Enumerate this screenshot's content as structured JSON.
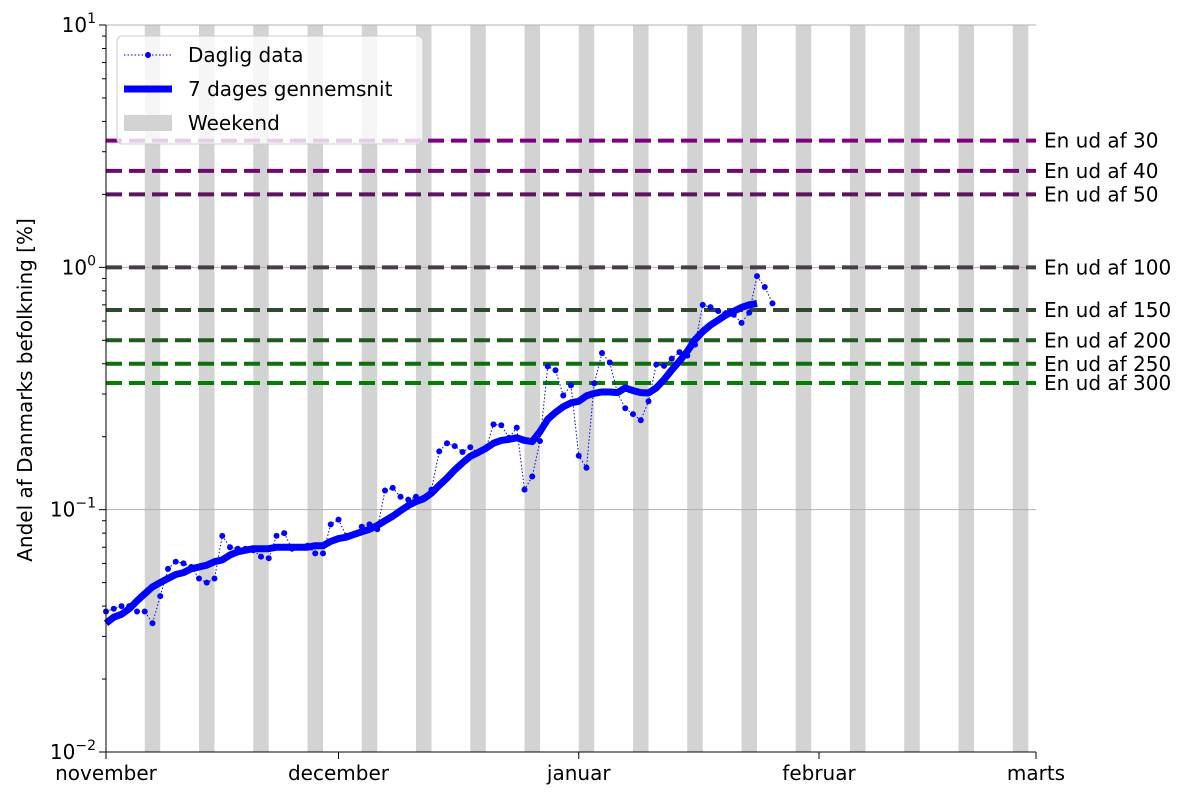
{
  "chart_data": {
    "type": "line",
    "yscale": "log",
    "ylim": [
      0.01,
      10
    ],
    "xlim": [
      "2021-11-01",
      "2022-03-01"
    ],
    "ylabel": "Andel af Danmarks befolkning [%]",
    "y_ticks": [
      {
        "value": 0.01,
        "base": "10",
        "exp": "−2"
      },
      {
        "value": 0.1,
        "base": "10",
        "exp": "−1"
      },
      {
        "value": 1,
        "base": "10",
        "exp": "0"
      },
      {
        "value": 10,
        "base": "10",
        "exp": "1"
      }
    ],
    "x_ticks": [
      {
        "date": "2021-11-01",
        "label": "november"
      },
      {
        "date": "2021-12-01",
        "label": "december"
      },
      {
        "date": "2022-01-01",
        "label": "januar"
      },
      {
        "date": "2022-02-01",
        "label": "februar"
      },
      {
        "date": "2022-03-01",
        "label": "marts"
      }
    ],
    "gridlines_y": [
      0.1,
      1,
      10
    ],
    "legend": {
      "placement": "top-left",
      "entries": [
        {
          "label": "Daglig data",
          "style": "dotted-marker",
          "color": "#0000ff"
        },
        {
          "label": "7 dages gennemsnit",
          "style": "thick-line",
          "color": "#0000ff"
        },
        {
          "label": "Weekend",
          "style": "patch",
          "color": "#d3d3d3"
        }
      ]
    },
    "weekend_color": "#d3d3d3",
    "weekends": [
      "2021-11-06",
      "2021-11-13",
      "2021-11-20",
      "2021-11-27",
      "2021-12-04",
      "2021-12-11",
      "2021-12-18",
      "2021-12-25",
      "2022-01-01",
      "2022-01-08",
      "2022-01-15",
      "2022-01-22",
      "2022-01-29",
      "2022-02-05",
      "2022-02-12",
      "2022-02-19",
      "2022-02-26"
    ],
    "thresholds": [
      {
        "label": "En ud af 30",
        "value": 3.333,
        "color": "#800080"
      },
      {
        "label": "En ud af 40",
        "value": 2.5,
        "color": "#6e0a6e"
      },
      {
        "label": "En ud af 50",
        "value": 2.0,
        "color": "#5c145c"
      },
      {
        "label": "En ud af 100",
        "value": 1.0,
        "color": "#4a3d4a"
      },
      {
        "label": "En ud af 150",
        "value": 0.667,
        "color": "#2f4a2f"
      },
      {
        "label": "En ud af 200",
        "value": 0.5,
        "color": "#1f5a1f"
      },
      {
        "label": "En ud af 250",
        "value": 0.4,
        "color": "#0f6e0f"
      },
      {
        "label": "En ud af 300",
        "value": 0.333,
        "color": "#008000"
      }
    ],
    "series": [
      {
        "name": "Daglig data",
        "color": "#0000ff",
        "start_date": "2021-11-01",
        "values": [
          0.038,
          0.039,
          0.04,
          0.04,
          0.038,
          0.038,
          0.034,
          0.044,
          0.057,
          0.061,
          0.06,
          0.058,
          0.052,
          0.05,
          0.052,
          0.078,
          0.07,
          0.069,
          0.069,
          0.068,
          0.064,
          0.063,
          0.078,
          0.08,
          0.069,
          0.07,
          0.071,
          0.066,
          0.066,
          0.087,
          0.091,
          0.078,
          0.079,
          0.085,
          0.087,
          0.083,
          0.12,
          0.123,
          0.113,
          0.11,
          0.113,
          0.112,
          0.121,
          0.174,
          0.188,
          0.183,
          0.173,
          0.181,
          0.172,
          0.178,
          0.225,
          0.223,
          0.198,
          0.218,
          0.121,
          0.137,
          0.192,
          0.39,
          0.376,
          0.296,
          0.326,
          0.167,
          0.149,
          0.332,
          0.443,
          0.405,
          0.303,
          0.262,
          0.248,
          0.234,
          0.28,
          0.397,
          0.392,
          0.42,
          0.447,
          0.432,
          0.48,
          0.7,
          0.685,
          0.66,
          0.647,
          0.637,
          0.59,
          0.65,
          0.92,
          0.83,
          0.71
        ]
      },
      {
        "name": "7 dages gennemsnit",
        "color": "#0000ff",
        "start_date": "2021-11-01",
        "values": [
          0.034,
          0.036,
          0.037,
          0.039,
          0.042,
          0.045,
          0.048,
          0.05,
          0.052,
          0.054,
          0.055,
          0.057,
          0.058,
          0.059,
          0.061,
          0.062,
          0.065,
          0.067,
          0.068,
          0.069,
          0.069,
          0.069,
          0.07,
          0.07,
          0.07,
          0.07,
          0.07,
          0.071,
          0.071,
          0.074,
          0.076,
          0.077,
          0.079,
          0.081,
          0.083,
          0.086,
          0.09,
          0.094,
          0.099,
          0.104,
          0.108,
          0.111,
          0.117,
          0.126,
          0.135,
          0.146,
          0.156,
          0.166,
          0.172,
          0.179,
          0.188,
          0.193,
          0.195,
          0.198,
          0.193,
          0.191,
          0.21,
          0.236,
          0.252,
          0.266,
          0.276,
          0.28,
          0.295,
          0.302,
          0.306,
          0.306,
          0.304,
          0.318,
          0.31,
          0.304,
          0.303,
          0.318,
          0.344,
          0.377,
          0.41,
          0.45,
          0.503,
          0.543,
          0.578,
          0.606,
          0.636,
          0.659,
          0.683,
          0.7,
          0.71
        ]
      }
    ]
  }
}
